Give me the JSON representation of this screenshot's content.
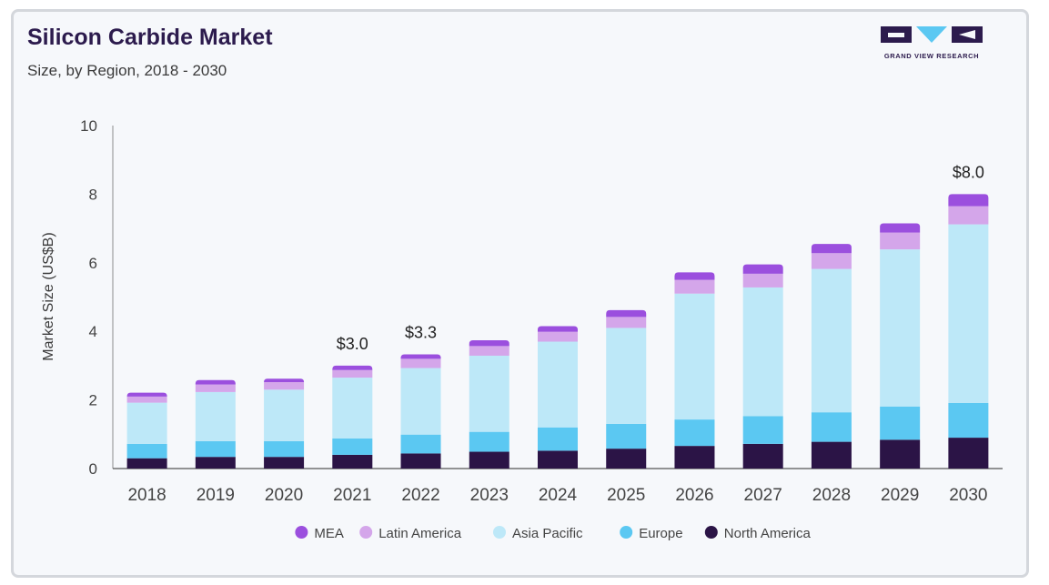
{
  "header": {
    "title": "Silicon Carbide Market",
    "subtitle": "Size, by Region, 2018 - 2030"
  },
  "logo": {
    "text": "GRAND VIEW RESEARCH",
    "colors": [
      "#2c1b4d",
      "#5bc8f2",
      "#2c1b4d"
    ]
  },
  "chart_data": {
    "type": "bar",
    "stacked": true,
    "title": "Silicon Carbide Market",
    "subtitle": "Size, by Region, 2018 - 2030",
    "xlabel": "",
    "ylabel": "Market Size (US$B)",
    "ylim": [
      0,
      10
    ],
    "yticks": [
      0,
      2,
      4,
      6,
      8,
      10
    ],
    "categories": [
      "2018",
      "2019",
      "2020",
      "2021",
      "2022",
      "2023",
      "2024",
      "2025",
      "2026",
      "2027",
      "2028",
      "2029",
      "2030"
    ],
    "series": [
      {
        "name": "North America",
        "color": "#2b1446",
        "values": [
          0.3,
          0.34,
          0.34,
          0.4,
          0.44,
          0.49,
          0.52,
          0.58,
          0.66,
          0.72,
          0.78,
          0.84,
          0.9
        ]
      },
      {
        "name": "Europe",
        "color": "#5bc8f2",
        "values": [
          0.42,
          0.46,
          0.46,
          0.48,
          0.55,
          0.58,
          0.68,
          0.72,
          0.77,
          0.81,
          0.86,
          0.97,
          1.01
        ]
      },
      {
        "name": "Asia Pacific",
        "color": "#bde8f8",
        "values": [
          1.2,
          1.43,
          1.5,
          1.77,
          1.94,
          2.22,
          2.5,
          2.8,
          3.67,
          3.75,
          4.18,
          4.58,
          5.21
        ]
      },
      {
        "name": "Latin America",
        "color": "#d4a6ea",
        "values": [
          0.18,
          0.22,
          0.22,
          0.22,
          0.27,
          0.28,
          0.29,
          0.32,
          0.4,
          0.4,
          0.46,
          0.49,
          0.53
        ]
      },
      {
        "name": "MEA",
        "color": "#9b4fde",
        "values": [
          0.11,
          0.13,
          0.1,
          0.13,
          0.13,
          0.17,
          0.16,
          0.2,
          0.22,
          0.27,
          0.27,
          0.27,
          0.35
        ]
      }
    ],
    "annotations": [
      {
        "category": "2021",
        "text": "$3.0"
      },
      {
        "category": "2022",
        "text": "$3.3"
      },
      {
        "category": "2030",
        "text": "$8.0"
      }
    ],
    "legend_order": [
      "MEA",
      "Latin America",
      "Asia Pacific",
      "Europe",
      "North America"
    ],
    "legend_position": "bottom",
    "grid": false
  }
}
